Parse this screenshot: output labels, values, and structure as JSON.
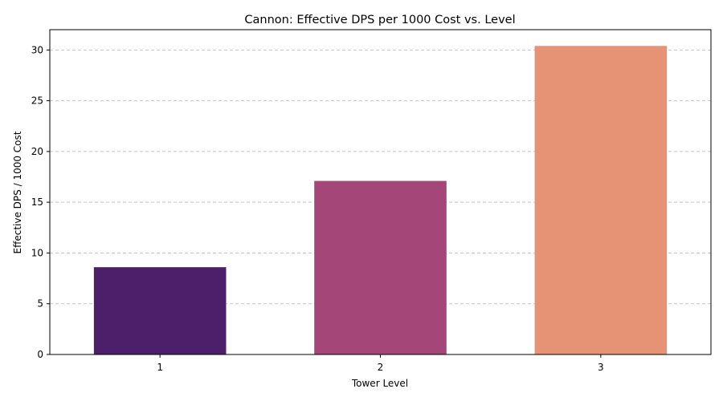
{
  "chart_data": {
    "type": "bar",
    "title": "Cannon: Effective DPS per 1000 Cost vs. Level",
    "xlabel": "Tower Level",
    "ylabel": "Effective DPS / 1000 Cost",
    "categories": [
      "1",
      "2",
      "3"
    ],
    "values": [
      8.6,
      17.1,
      30.4
    ],
    "colors": [
      "#4d1f6b",
      "#a54678",
      "#e69275"
    ],
    "ylim": [
      0,
      32
    ],
    "yticks": [
      0,
      5,
      10,
      15,
      20,
      25,
      30
    ],
    "grid": "y-dashed",
    "legend": "none"
  }
}
